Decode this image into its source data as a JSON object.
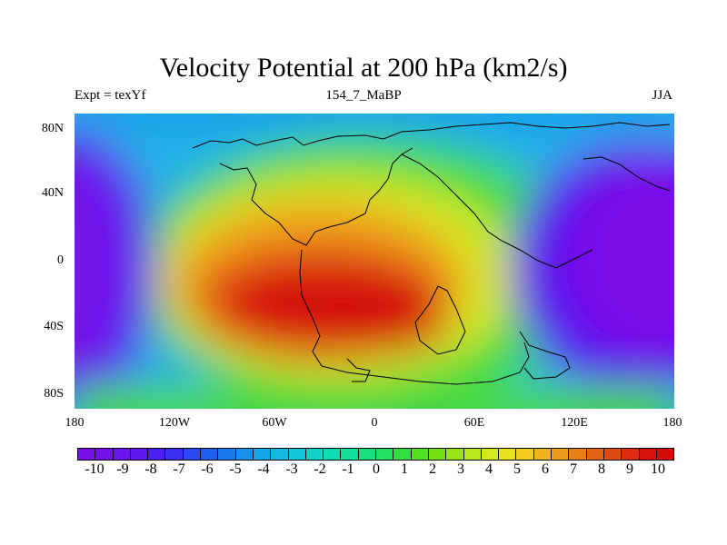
{
  "header": {
    "title": "Velocity Potential at 200 hPa (km2/s)",
    "left_label": "Expt = texYf",
    "center_label": "154_7_MaBP",
    "right_label": "JJA"
  },
  "axes": {
    "lat_ticks": [
      "80N",
      "40N",
      "0",
      "40S",
      "80S"
    ],
    "lon_ticks": [
      "180",
      "120W",
      "60W",
      "0",
      "60E",
      "120E",
      "180"
    ]
  },
  "colorbar": {
    "labels": [
      "-10",
      "-9",
      "-8",
      "-7",
      "-6",
      "-5",
      "-4",
      "-3",
      "-2",
      "-1",
      "0",
      "1",
      "2",
      "3",
      "4",
      "5",
      "6",
      "7",
      "8",
      "9",
      "10"
    ],
    "colors": [
      "#7a10e8",
      "#7212ea",
      "#6a14ec",
      "#5c18ee",
      "#4a20f0",
      "#3a30f2",
      "#2a48f2",
      "#2060f0",
      "#1878ee",
      "#1690ec",
      "#14a6e8",
      "#14b8e0",
      "#12c8d8",
      "#10d4c8",
      "#10dcb4",
      "#12e09c",
      "#18e080",
      "#22e060",
      "#30e040",
      "#50e020",
      "#74e014",
      "#98e418",
      "#b8e81c",
      "#d4e81e",
      "#e8e020",
      "#f0cc1e",
      "#f0b41c",
      "#ec9a1a",
      "#e88018",
      "#e46416",
      "#e04814",
      "#dc2c12",
      "#d81410",
      "#d40a0a"
    ]
  },
  "chart_data": {
    "type": "heatmap",
    "title": "Velocity Potential at 200 hPa (km2/s)",
    "units": "km2/s",
    "xlabel": "",
    "ylabel": "",
    "xlim": [
      -180,
      180
    ],
    "ylim": [
      -90,
      90
    ],
    "clim": [
      -10,
      10
    ],
    "features": [
      {
        "type": "max",
        "lon": -5,
        "lat": -25,
        "value": 10
      },
      {
        "type": "min",
        "lon": 140,
        "lat": 10,
        "value": -10
      },
      {
        "type": "min",
        "lon": -170,
        "lat": 0,
        "value": -8
      }
    ]
  }
}
